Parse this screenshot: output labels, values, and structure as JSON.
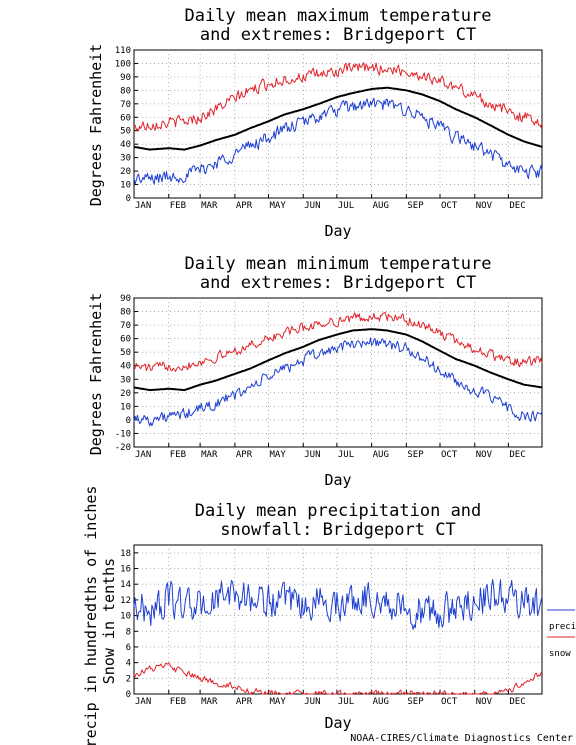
{
  "credit": "NOAA-CIRES/Climate Diagnostics Center",
  "colors": {
    "max": "#000000",
    "high": "#e0242b",
    "low": "#1f3fd0",
    "precip": "#1f3fd0",
    "snow": "#e0242b",
    "grid": "#9a9a9a"
  },
  "chart_data": [
    {
      "type": "line",
      "title_lines": [
        "Daily mean maximum temperature",
        "and extremes: Bridgeport CT"
      ],
      "xlabel": "Day",
      "ylabel": "Degrees Fahrenheit",
      "ylim": [
        0,
        110
      ],
      "yticks": [
        0,
        10,
        20,
        30,
        40,
        50,
        60,
        70,
        80,
        90,
        100,
        110
      ],
      "x_tick_labels": [
        "JAN",
        "FEB",
        "MAR",
        "APR",
        "MAY",
        "JUN",
        "JUL",
        "AUG",
        "SEP",
        "OCT",
        "NOV",
        "DEC"
      ],
      "grid": true,
      "x": [
        1,
        15,
        32,
        46,
        60,
        74,
        91,
        105,
        121,
        135,
        152,
        166,
        182,
        196,
        213,
        227,
        244,
        258,
        274,
        288,
        305,
        319,
        335,
        349,
        365
      ],
      "series": [
        {
          "key": "mean",
          "color": "#000000",
          "width": 2,
          "noise": 0,
          "values": [
            38,
            36,
            37,
            36,
            39,
            43,
            47,
            52,
            57,
            62,
            66,
            70,
            75,
            78,
            81,
            82,
            80,
            77,
            72,
            66,
            60,
            54,
            47,
            42,
            38
          ]
        },
        {
          "key": "record_high",
          "color": "#e0242b",
          "width": 1,
          "noise": 6,
          "values": [
            52,
            55,
            56,
            57,
            60,
            66,
            74,
            80,
            85,
            88,
            90,
            92,
            94,
            96,
            97,
            96,
            94,
            91,
            87,
            82,
            76,
            70,
            64,
            60,
            57
          ]
        },
        {
          "key": "record_low",
          "color": "#1f3fd0",
          "width": 1,
          "noise": 7,
          "values": [
            14,
            14,
            16,
            17,
            21,
            26,
            33,
            39,
            45,
            51,
            56,
            61,
            65,
            68,
            70,
            69,
            66,
            60,
            52,
            45,
            39,
            33,
            24,
            19,
            20
          ]
        }
      ]
    },
    {
      "type": "line",
      "title_lines": [
        "Daily mean minimum temperature",
        "and extremes: Bridgeport CT"
      ],
      "xlabel": "Day",
      "ylabel": "Degrees Fahrenheit",
      "ylim": [
        -20,
        90
      ],
      "yticks": [
        -20,
        -10,
        0,
        10,
        20,
        30,
        40,
        50,
        60,
        70,
        80,
        90
      ],
      "x_tick_labels": [
        "JAN",
        "FEB",
        "MAR",
        "APR",
        "MAY",
        "JUN",
        "JUL",
        "AUG",
        "SEP",
        "OCT",
        "NOV",
        "DEC"
      ],
      "grid": true,
      "x": [
        1,
        15,
        32,
        46,
        60,
        74,
        91,
        105,
        121,
        135,
        152,
        166,
        182,
        196,
        213,
        227,
        244,
        258,
        274,
        288,
        305,
        319,
        335,
        349,
        365
      ],
      "series": [
        {
          "key": "mean",
          "color": "#000000",
          "width": 2,
          "noise": 0,
          "values": [
            24,
            22,
            23,
            22,
            26,
            29,
            34,
            38,
            44,
            49,
            54,
            59,
            63,
            66,
            67,
            66,
            63,
            58,
            51,
            45,
            40,
            35,
            30,
            26,
            24
          ]
        },
        {
          "key": "record_high",
          "color": "#e0242b",
          "width": 1,
          "noise": 5,
          "values": [
            40,
            38,
            40,
            40,
            43,
            46,
            51,
            55,
            60,
            64,
            68,
            71,
            73,
            75,
            76,
            76,
            74,
            70,
            64,
            58,
            53,
            48,
            44,
            42,
            44
          ]
        },
        {
          "key": "record_low",
          "color": "#1f3fd0",
          "width": 1,
          "noise": 6,
          "values": [
            2,
            0,
            2,
            4,
            8,
            12,
            18,
            24,
            32,
            38,
            44,
            49,
            53,
            56,
            58,
            56,
            52,
            46,
            36,
            28,
            22,
            16,
            9,
            2,
            2
          ]
        }
      ]
    },
    {
      "type": "line",
      "title_lines": [
        "Daily mean precipitation and",
        "snowfall: Bridgeport CT"
      ],
      "xlabel": "Day",
      "ylabel_lines": [
        "Precip in hundredths of inches",
        "Snow in tenths"
      ],
      "ylim": [
        0,
        19
      ],
      "yticks": [
        0,
        2,
        4,
        6,
        8,
        10,
        12,
        14,
        16,
        18
      ],
      "x_tick_labels": [
        "JAN",
        "FEB",
        "MAR",
        "APR",
        "MAY",
        "JUN",
        "JUL",
        "AUG",
        "SEP",
        "OCT",
        "NOV",
        "DEC"
      ],
      "grid": true,
      "legend": [
        "precip",
        "snow"
      ],
      "legend_position": "right",
      "x": [
        1,
        15,
        32,
        46,
        60,
        74,
        91,
        105,
        121,
        135,
        152,
        166,
        182,
        196,
        213,
        227,
        244,
        258,
        274,
        288,
        305,
        319,
        335,
        349,
        365
      ],
      "series": [
        {
          "key": "precip",
          "name": "precip",
          "color": "#1f3fd0",
          "width": 1,
          "noise": 3,
          "values": [
            11.5,
            10.5,
            12,
            11.5,
            11,
            12,
            13,
            12,
            12,
            11.5,
            11,
            12,
            11.5,
            12,
            12.5,
            11.5,
            11,
            10.5,
            10,
            11,
            12,
            12.5,
            12.5,
            11.5,
            11
          ]
        },
        {
          "key": "snow",
          "name": "snow",
          "color": "#e0242b",
          "width": 1,
          "noise": 0.6,
          "values": [
            2.5,
            3.2,
            3.6,
            2.6,
            2.0,
            1.4,
            1.0,
            0.4,
            0,
            0,
            0,
            0,
            0,
            0,
            0,
            0,
            0,
            0,
            0,
            0,
            0,
            0,
            0.3,
            1.5,
            2.8
          ]
        }
      ]
    }
  ]
}
